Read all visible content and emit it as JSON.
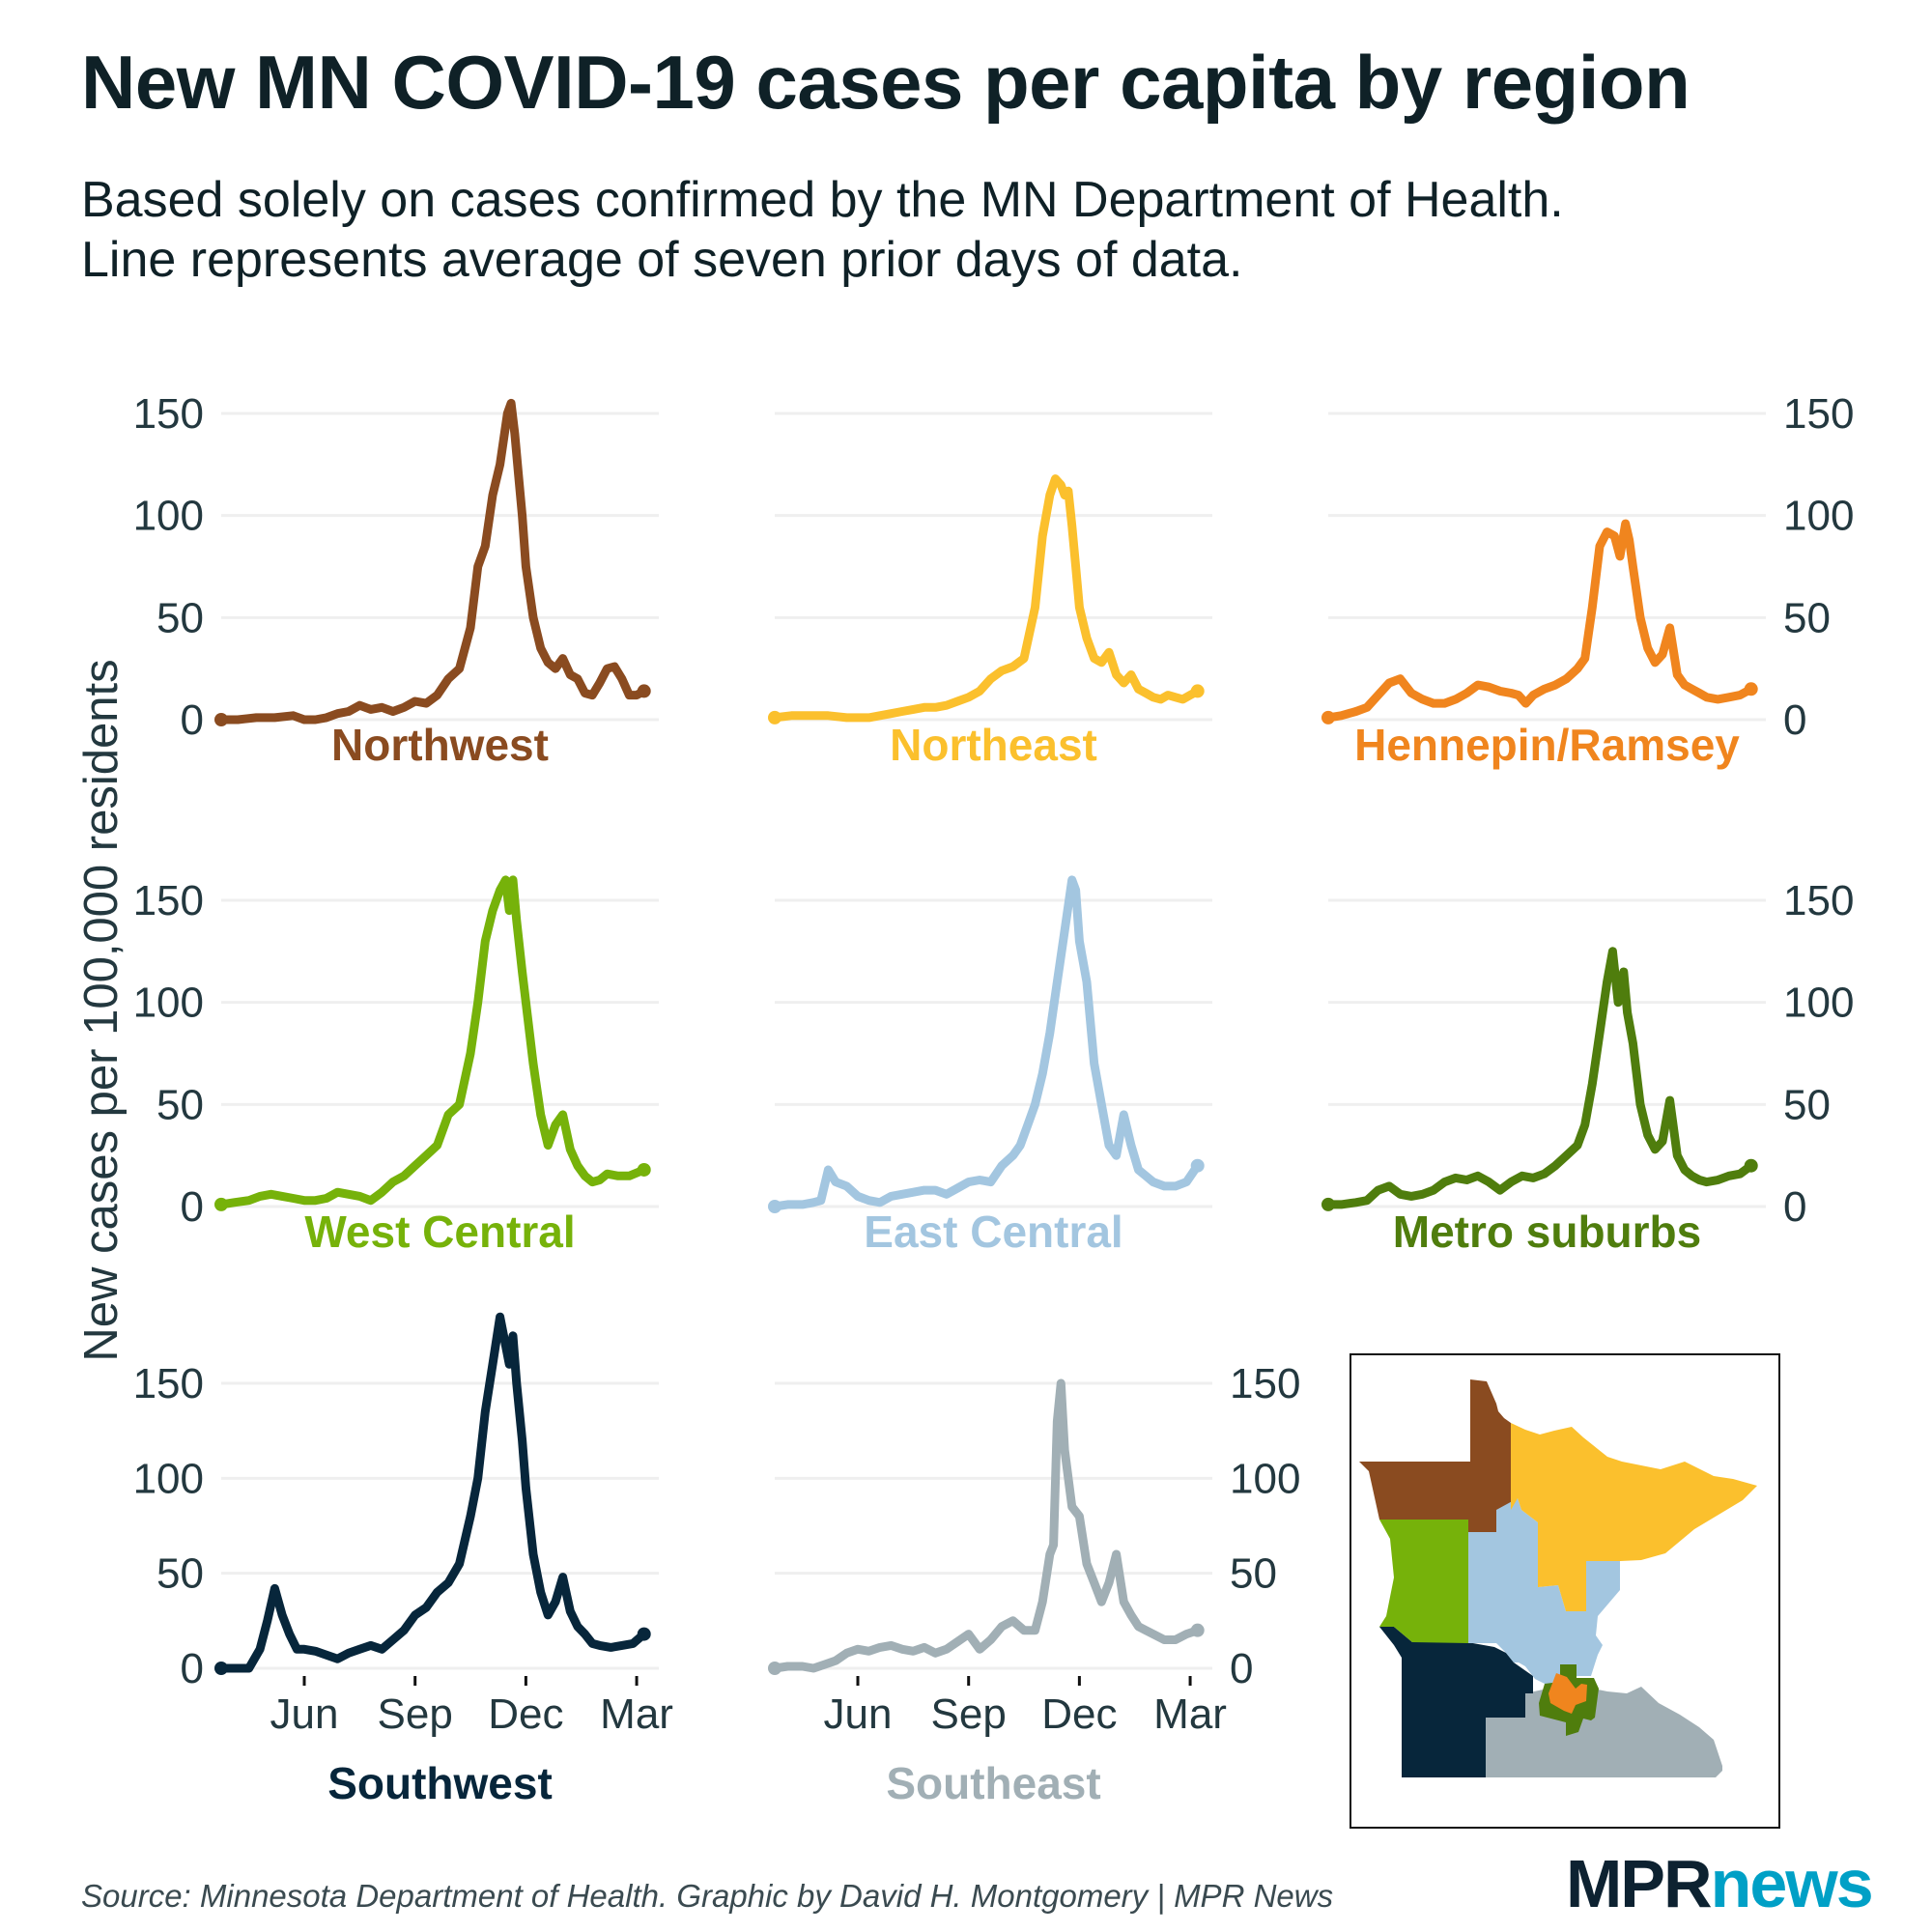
{
  "header": {
    "title": "New MN COVID-19 cases per capita by region",
    "subtitle": "Based solely on cases confirmed by the MN Department of Health.\nLine represents average of seven prior days of data."
  },
  "footer": {
    "source": "Source: Minnesota Department of Health. Graphic by David H. Montgomery | MPR News",
    "logo_mpr": "MPR",
    "logo_news": "news"
  },
  "colors": {
    "text": "#0f2127",
    "axis_text": "#23383f",
    "grid": "#efefef",
    "logo_dark": "#0d2231",
    "logo_accent": "#00a0c6"
  },
  "chart_data": {
    "type": "line",
    "title": "New MN COVID-19 cases per capita by region",
    "ylabel": "New cases per 100,000 residents",
    "xlabel": "",
    "x_units": "months relative to June 1, 2020",
    "xlim": [
      -2.25,
      9.6
    ],
    "x_ticks": [
      0,
      3,
      6,
      9
    ],
    "x_tick_labels": [
      "Jun",
      "Sep",
      "Dec",
      "Mar"
    ],
    "y_ticks": [
      0,
      50,
      100,
      150
    ],
    "y_tick_labels": [
      "0",
      "50",
      "100",
      "150"
    ],
    "grid": true,
    "legend": "none (panel labels)",
    "panels": [
      {
        "name": "Northwest",
        "color": "#8a4b20",
        "ylim": [
          0,
          160
        ],
        "x": [
          -2.25,
          -1.8,
          -1.3,
          -0.8,
          -0.3,
          0.0,
          0.3,
          0.6,
          0.9,
          1.2,
          1.5,
          1.8,
          2.1,
          2.4,
          2.7,
          3.0,
          3.3,
          3.6,
          3.9,
          4.2,
          4.5,
          4.7,
          4.9,
          5.1,
          5.3,
          5.5,
          5.6,
          5.7,
          5.8,
          5.9,
          6.0,
          6.2,
          6.4,
          6.6,
          6.8,
          7.0,
          7.2,
          7.4,
          7.6,
          7.8,
          8.0,
          8.2,
          8.4,
          8.6,
          8.8,
          9.0,
          9.2
        ],
        "y": [
          0,
          0,
          1,
          1,
          2,
          0,
          0,
          1,
          3,
          4,
          7,
          5,
          6,
          4,
          6,
          9,
          8,
          12,
          20,
          25,
          45,
          75,
          85,
          110,
          125,
          150,
          155,
          140,
          120,
          100,
          75,
          50,
          35,
          28,
          25,
          30,
          22,
          20,
          13,
          12,
          18,
          25,
          26,
          20,
          12,
          12,
          14
        ]
      },
      {
        "name": "Northeast",
        "color": "#fbc02d",
        "ylim": [
          0,
          160
        ],
        "x": [
          -2.25,
          -1.8,
          -1.3,
          -0.8,
          -0.3,
          0.0,
          0.3,
          0.6,
          0.9,
          1.2,
          1.5,
          1.8,
          2.1,
          2.4,
          2.7,
          3.0,
          3.3,
          3.6,
          3.9,
          4.2,
          4.5,
          4.8,
          5.0,
          5.2,
          5.35,
          5.5,
          5.6,
          5.7,
          5.8,
          5.9,
          6.0,
          6.2,
          6.4,
          6.6,
          6.8,
          7.0,
          7.2,
          7.4,
          7.6,
          7.8,
          8.0,
          8.2,
          8.4,
          8.6,
          8.8,
          9.0,
          9.2
        ],
        "y": [
          1,
          2,
          2,
          2,
          1,
          1,
          1,
          2,
          3,
          4,
          5,
          6,
          6,
          7,
          9,
          11,
          14,
          20,
          24,
          26,
          30,
          55,
          90,
          110,
          118,
          115,
          110,
          112,
          95,
          75,
          55,
          40,
          30,
          28,
          33,
          22,
          18,
          22,
          15,
          13,
          11,
          10,
          12,
          11,
          10,
          12,
          14
        ]
      },
      {
        "name": "Hennepin/Ramsey",
        "color": "#f0851e",
        "ylim": [
          0,
          160
        ],
        "x": [
          -2.25,
          -1.9,
          -1.5,
          -1.2,
          -0.9,
          -0.6,
          -0.3,
          0.0,
          0.3,
          0.6,
          0.9,
          1.2,
          1.5,
          1.8,
          2.1,
          2.4,
          2.7,
          2.9,
          3.1,
          3.3,
          3.6,
          3.9,
          4.2,
          4.5,
          4.7,
          4.9,
          5.1,
          5.3,
          5.5,
          5.65,
          5.8,
          5.9,
          6.0,
          6.2,
          6.4,
          6.6,
          6.8,
          7.0,
          7.2,
          7.4,
          7.6,
          7.8,
          8.0,
          8.3,
          8.6,
          8.9,
          9.2
        ],
        "y": [
          1,
          2,
          4,
          6,
          12,
          18,
          20,
          13,
          10,
          8,
          8,
          10,
          13,
          17,
          16,
          14,
          13,
          12,
          8,
          12,
          15,
          17,
          20,
          25,
          30,
          55,
          85,
          92,
          90,
          80,
          96,
          88,
          75,
          50,
          35,
          28,
          32,
          45,
          22,
          17,
          15,
          13,
          11,
          10,
          11,
          12,
          15
        ]
      },
      {
        "name": "West Central",
        "color": "#76b20a",
        "ylim": [
          0,
          160
        ],
        "x": [
          -2.25,
          -1.9,
          -1.5,
          -1.2,
          -0.9,
          -0.6,
          -0.3,
          0.0,
          0.3,
          0.6,
          0.9,
          1.2,
          1.5,
          1.8,
          2.1,
          2.4,
          2.7,
          3.0,
          3.3,
          3.6,
          3.9,
          4.2,
          4.5,
          4.7,
          4.9,
          5.1,
          5.3,
          5.45,
          5.55,
          5.65,
          5.75,
          5.9,
          6.0,
          6.2,
          6.4,
          6.6,
          6.8,
          7.0,
          7.2,
          7.4,
          7.6,
          7.8,
          8.0,
          8.2,
          8.5,
          8.8,
          9.2
        ],
        "y": [
          1,
          2,
          3,
          5,
          6,
          5,
          4,
          3,
          3,
          4,
          7,
          6,
          5,
          3,
          7,
          12,
          15,
          20,
          25,
          30,
          45,
          50,
          75,
          100,
          130,
          145,
          155,
          160,
          145,
          160,
          140,
          115,
          100,
          70,
          45,
          30,
          40,
          45,
          28,
          20,
          15,
          12,
          13,
          16,
          15,
          15,
          18
        ]
      },
      {
        "name": "East Central",
        "color": "#a3c6e0",
        "ylim": [
          0,
          160
        ],
        "x": [
          -2.25,
          -1.9,
          -1.5,
          -1.2,
          -1.0,
          -0.8,
          -0.6,
          -0.3,
          0.0,
          0.3,
          0.6,
          0.9,
          1.2,
          1.5,
          1.8,
          2.1,
          2.4,
          2.7,
          3.0,
          3.3,
          3.6,
          3.9,
          4.2,
          4.4,
          4.6,
          4.8,
          5.0,
          5.2,
          5.4,
          5.6,
          5.8,
          5.9,
          6.0,
          6.2,
          6.4,
          6.6,
          6.8,
          7.0,
          7.2,
          7.4,
          7.6,
          7.8,
          8.0,
          8.3,
          8.6,
          8.9,
          9.2
        ],
        "y": [
          0,
          1,
          1,
          2,
          3,
          18,
          12,
          10,
          5,
          3,
          2,
          5,
          6,
          7,
          8,
          8,
          6,
          9,
          12,
          13,
          12,
          20,
          25,
          30,
          40,
          50,
          65,
          85,
          110,
          135,
          160,
          155,
          130,
          110,
          70,
          50,
          30,
          25,
          45,
          30,
          18,
          15,
          12,
          10,
          10,
          12,
          20
        ]
      },
      {
        "name": "Metro suburbs",
        "color": "#4f7d0d",
        "ylim": [
          0,
          160
        ],
        "x": [
          -2.25,
          -1.9,
          -1.5,
          -1.2,
          -0.9,
          -0.6,
          -0.3,
          0.0,
          0.3,
          0.6,
          0.9,
          1.2,
          1.5,
          1.8,
          2.1,
          2.4,
          2.7,
          3.0,
          3.3,
          3.6,
          3.9,
          4.2,
          4.5,
          4.7,
          4.9,
          5.1,
          5.3,
          5.45,
          5.6,
          5.75,
          5.85,
          6.0,
          6.2,
          6.4,
          6.6,
          6.8,
          7.0,
          7.2,
          7.4,
          7.6,
          7.8,
          8.0,
          8.3,
          8.6,
          8.9,
          9.2
        ],
        "y": [
          1,
          1,
          2,
          3,
          8,
          10,
          6,
          5,
          6,
          8,
          12,
          14,
          13,
          15,
          12,
          8,
          12,
          15,
          14,
          16,
          20,
          25,
          30,
          40,
          60,
          85,
          110,
          125,
          100,
          115,
          95,
          80,
          50,
          35,
          28,
          32,
          52,
          25,
          18,
          15,
          13,
          12,
          13,
          15,
          16,
          20
        ]
      },
      {
        "name": "Southwest",
        "color": "#07263b",
        "ylim": [
          0,
          195
        ],
        "x": [
          -2.25,
          -1.9,
          -1.5,
          -1.2,
          -1.0,
          -0.8,
          -0.6,
          -0.4,
          -0.2,
          0.0,
          0.3,
          0.6,
          0.9,
          1.2,
          1.5,
          1.8,
          2.1,
          2.4,
          2.7,
          3.0,
          3.3,
          3.6,
          3.9,
          4.2,
          4.5,
          4.7,
          4.9,
          5.1,
          5.3,
          5.45,
          5.55,
          5.65,
          5.75,
          5.9,
          6.0,
          6.2,
          6.4,
          6.6,
          6.8,
          7.0,
          7.2,
          7.4,
          7.6,
          7.8,
          8.0,
          8.3,
          8.6,
          8.9,
          9.2
        ],
        "y": [
          0,
          0,
          0,
          10,
          25,
          42,
          28,
          18,
          10,
          10,
          9,
          7,
          5,
          8,
          10,
          12,
          10,
          15,
          20,
          28,
          32,
          40,
          45,
          55,
          80,
          100,
          135,
          160,
          185,
          170,
          160,
          175,
          150,
          120,
          95,
          60,
          40,
          28,
          35,
          48,
          30,
          22,
          18,
          13,
          12,
          11,
          12,
          13,
          18
        ]
      },
      {
        "name": "Southeast",
        "color": "#a1afb5",
        "ylim": [
          0,
          160
        ],
        "x": [
          -2.25,
          -1.9,
          -1.5,
          -1.2,
          -0.9,
          -0.6,
          -0.3,
          0.0,
          0.3,
          0.6,
          0.9,
          1.2,
          1.5,
          1.8,
          2.1,
          2.4,
          2.7,
          3.0,
          3.3,
          3.6,
          3.9,
          4.2,
          4.5,
          4.8,
          5.0,
          5.2,
          5.3,
          5.4,
          5.5,
          5.6,
          5.7,
          5.8,
          6.0,
          6.2,
          6.4,
          6.6,
          6.8,
          7.0,
          7.2,
          7.4,
          7.6,
          7.8,
          8.0,
          8.3,
          8.6,
          8.9,
          9.2
        ],
        "y": [
          0,
          1,
          1,
          0,
          2,
          4,
          8,
          10,
          9,
          11,
          12,
          10,
          9,
          11,
          8,
          10,
          14,
          18,
          10,
          15,
          22,
          25,
          20,
          20,
          35,
          60,
          65,
          130,
          150,
          115,
          100,
          85,
          80,
          55,
          45,
          35,
          45,
          60,
          35,
          28,
          22,
          20,
          18,
          15,
          15,
          18,
          20
        ]
      }
    ]
  }
}
